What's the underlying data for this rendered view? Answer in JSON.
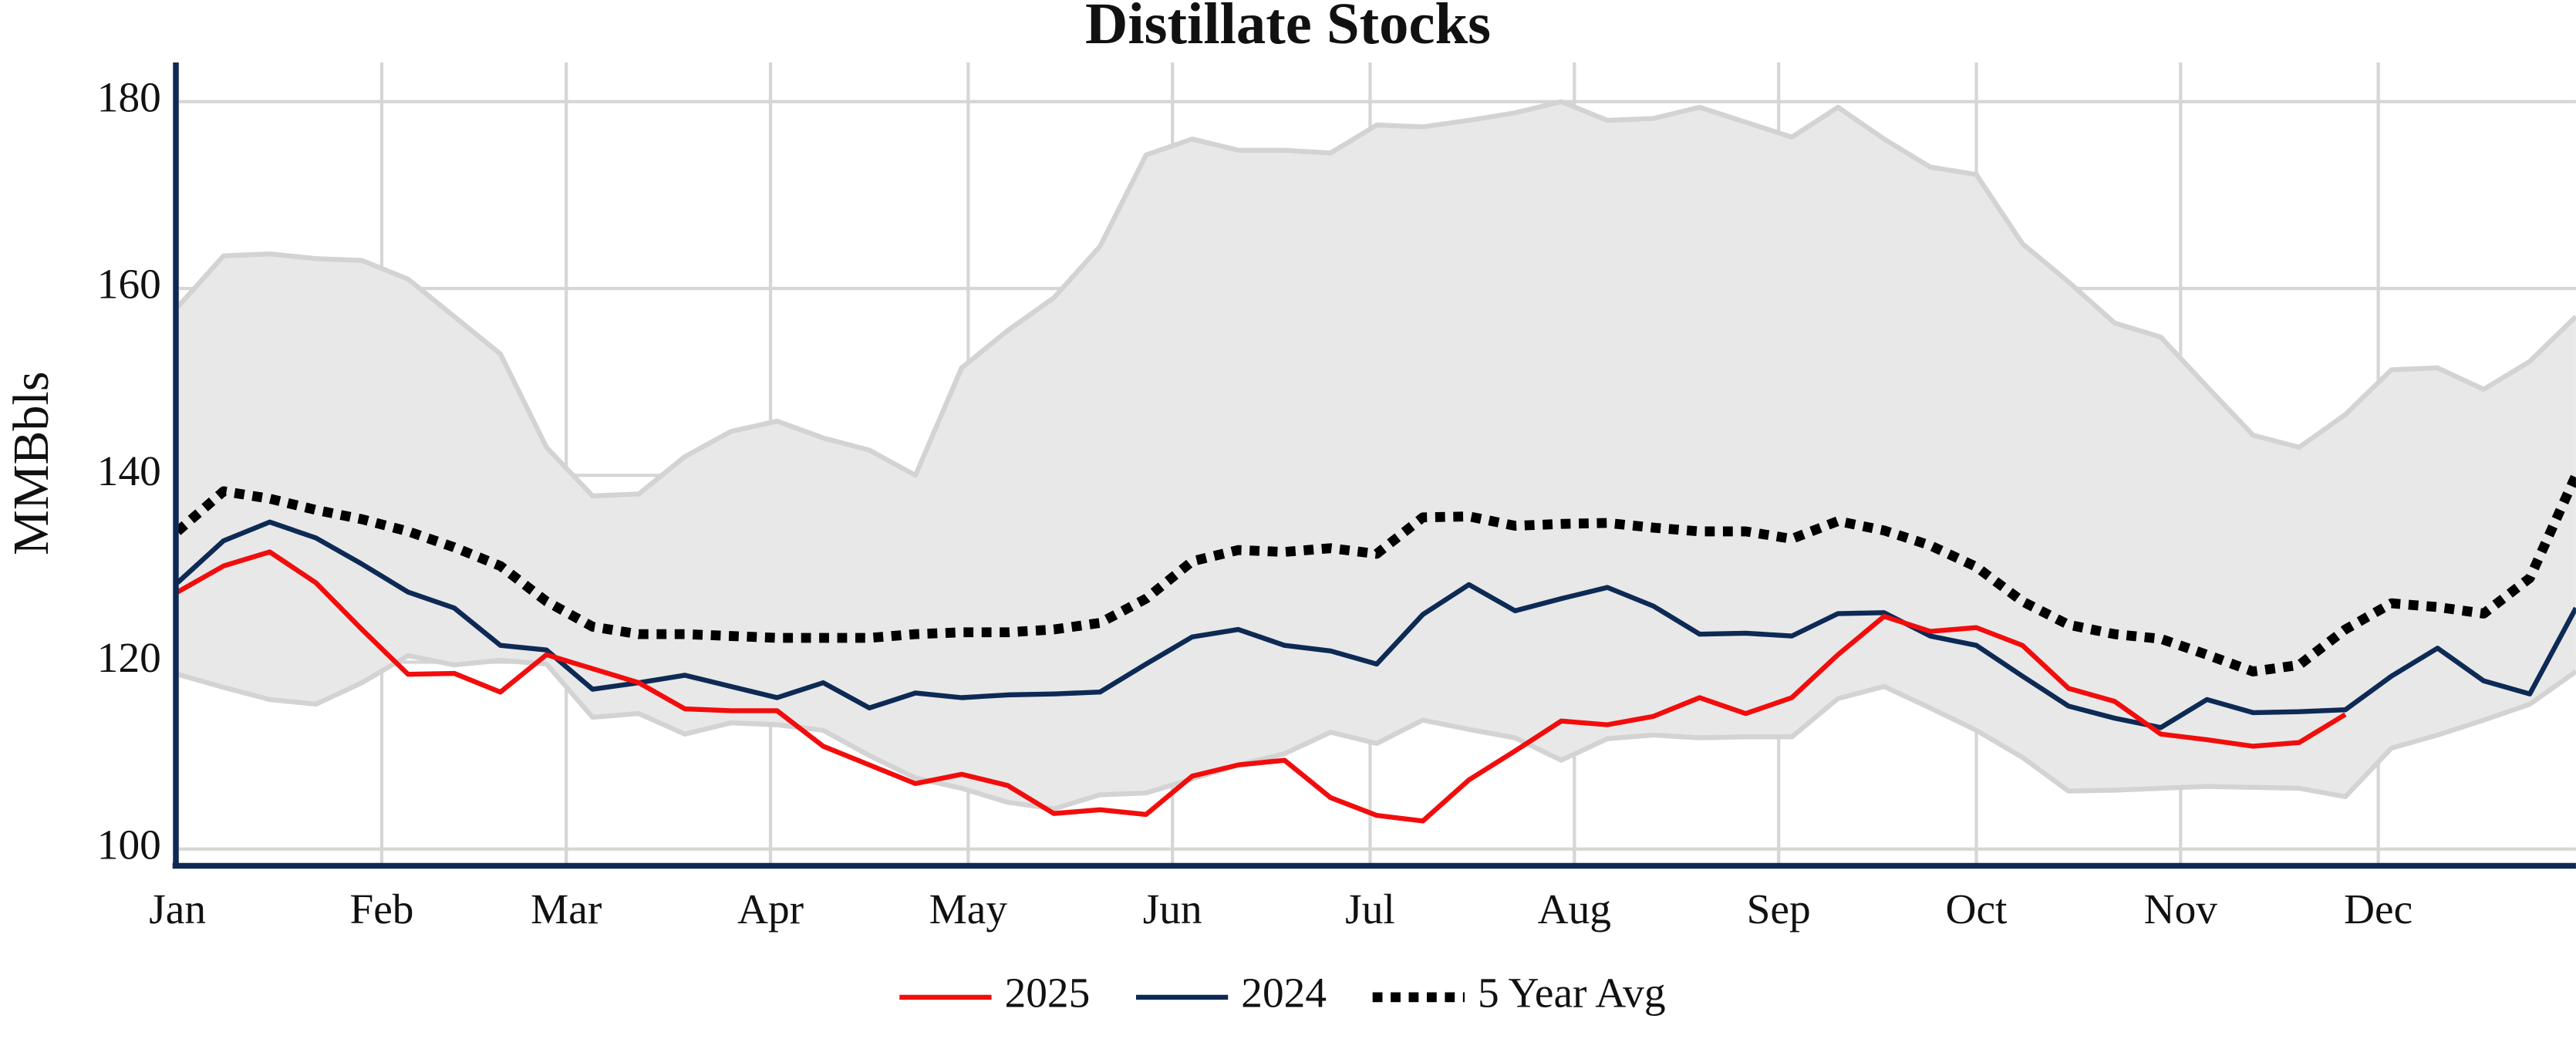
{
  "chart_data": {
    "type": "line",
    "title": "Distillate Stocks",
    "y_label": "MMBbls",
    "x": [
      0,
      7,
      14,
      21,
      28,
      35,
      42,
      49,
      56,
      63,
      70,
      77,
      84,
      91,
      98,
      105,
      112,
      119,
      126,
      133,
      140,
      147,
      154,
      161,
      168,
      175,
      182,
      189,
      196,
      203,
      210,
      217,
      224,
      231,
      238,
      245,
      252,
      259,
      266,
      273,
      280,
      287,
      294,
      301,
      308,
      315,
      322,
      329,
      336,
      343,
      350,
      357,
      364
    ],
    "xlim": [
      0,
      364
    ],
    "xticks": [
      {
        "value": 0,
        "label": "Jan"
      },
      {
        "value": 31,
        "label": "Feb"
      },
      {
        "value": 59,
        "label": "Mar"
      },
      {
        "value": 90,
        "label": "Apr"
      },
      {
        "value": 120,
        "label": "May"
      },
      {
        "value": 151,
        "label": "Jun"
      },
      {
        "value": 181,
        "label": "Jul"
      },
      {
        "value": 212,
        "label": "Aug"
      },
      {
        "value": 243,
        "label": "Sep"
      },
      {
        "value": 273,
        "label": "Oct"
      },
      {
        "value": 304,
        "label": "Nov"
      },
      {
        "value": 334,
        "label": "Dec"
      }
    ],
    "ylim": [
      98.2,
      184.2
    ],
    "yticks": [
      100,
      120,
      140,
      160,
      180
    ],
    "grid": true,
    "legend": "bottom",
    "range": {
      "color": "#e8e8e8",
      "edge_color": "#d3d3d3",
      "upper": [
        158,
        163.5,
        163.7,
        163.2,
        163,
        161,
        157,
        153,
        143,
        137.8,
        138,
        142,
        144.7,
        145.8,
        144,
        142.7,
        140,
        151.5,
        155.5,
        159,
        164.5,
        174.3,
        176,
        174.8,
        174.8,
        174.5,
        177.5,
        177.3,
        178,
        178.8,
        180,
        178,
        178.2,
        179.4,
        177.8,
        176.2,
        179.4,
        176,
        173,
        172.2,
        164.8,
        160.7,
        156.3,
        154.8,
        149.5,
        144.3,
        143,
        146.5,
        151.3,
        151.5,
        149.2,
        152.2,
        157
      ],
      "lower": [
        118.7,
        117.3,
        116,
        115.5,
        117.8,
        120.7,
        119.7,
        120.2,
        119.8,
        114.1,
        114.5,
        112.3,
        113.5,
        113.3,
        112.7,
        110,
        107.6,
        106.5,
        105,
        104.3,
        105.8,
        106,
        107.5,
        109,
        110.2,
        112.5,
        111.3,
        113.8,
        112.8,
        111.9,
        109.5,
        111.8,
        112.2,
        111.9,
        112,
        112,
        116.1,
        117.4,
        115.1,
        112.7,
        109.8,
        106.2,
        106.3,
        106.5,
        106.7,
        106.6,
        106.5,
        105.6,
        110.8,
        112.2,
        113.8,
        115.5,
        119
      ]
    },
    "series": [
      {
        "name": "2025",
        "color": "#f20d0d",
        "style": "solid",
        "values": [
          127.5,
          130.3,
          131.8,
          128.5,
          123.5,
          118.7,
          118.8,
          116.8,
          120.8,
          119.3,
          117.8,
          115,
          114.8,
          114.8,
          111,
          109,
          107,
          108,
          106.8,
          103.8,
          104.2,
          103.7,
          107.8,
          109,
          109.5,
          105.5,
          103.6,
          103,
          107.4,
          110.5,
          113.7,
          113.3,
          114.2,
          116.2,
          114.5,
          116.2,
          120.8,
          124.9,
          123.3,
          123.7,
          121.8,
          117.2,
          115.8,
          112.3,
          111.7,
          111,
          111.4,
          114.4,
          null,
          null,
          null,
          null,
          null
        ]
      },
      {
        "name": "2024",
        "color": "#0d2a55",
        "style": "solid",
        "values": [
          128.5,
          133,
          135,
          133.3,
          130.5,
          127.5,
          125.8,
          121.8,
          121.3,
          117.1,
          117.8,
          118.6,
          117.4,
          116.2,
          117.8,
          115.1,
          116.7,
          116.2,
          116.5,
          116.6,
          116.8,
          119.8,
          122.7,
          123.5,
          121.8,
          121.2,
          119.8,
          125.1,
          128.3,
          125.5,
          126.8,
          128,
          126,
          123,
          123.1,
          122.8,
          125.2,
          125.3,
          122.8,
          121.8,
          118.5,
          115.3,
          114,
          113,
          116,
          114.6,
          114.7,
          114.9,
          118.5,
          121.5,
          118,
          116.6,
          125.8
        ]
      },
      {
        "name": "5 Year Avg",
        "color": "#000000",
        "style": "dotted",
        "values": [
          134,
          138.3,
          137.5,
          136.3,
          135.3,
          134,
          132.3,
          130.3,
          126.5,
          123.8,
          123,
          123,
          122.8,
          122.6,
          122.6,
          122.6,
          123,
          123.2,
          123.2,
          123.5,
          124.2,
          126.8,
          130.8,
          132,
          131.8,
          132.2,
          131.6,
          135.5,
          135.6,
          134.6,
          134.8,
          134.9,
          134.4,
          134,
          134,
          133.2,
          135.1,
          134.1,
          132.5,
          130.2,
          126.5,
          124,
          123,
          122.5,
          120.8,
          119,
          119.7,
          123.5,
          126.3,
          125.9,
          125.2,
          129,
          140
        ]
      }
    ]
  }
}
